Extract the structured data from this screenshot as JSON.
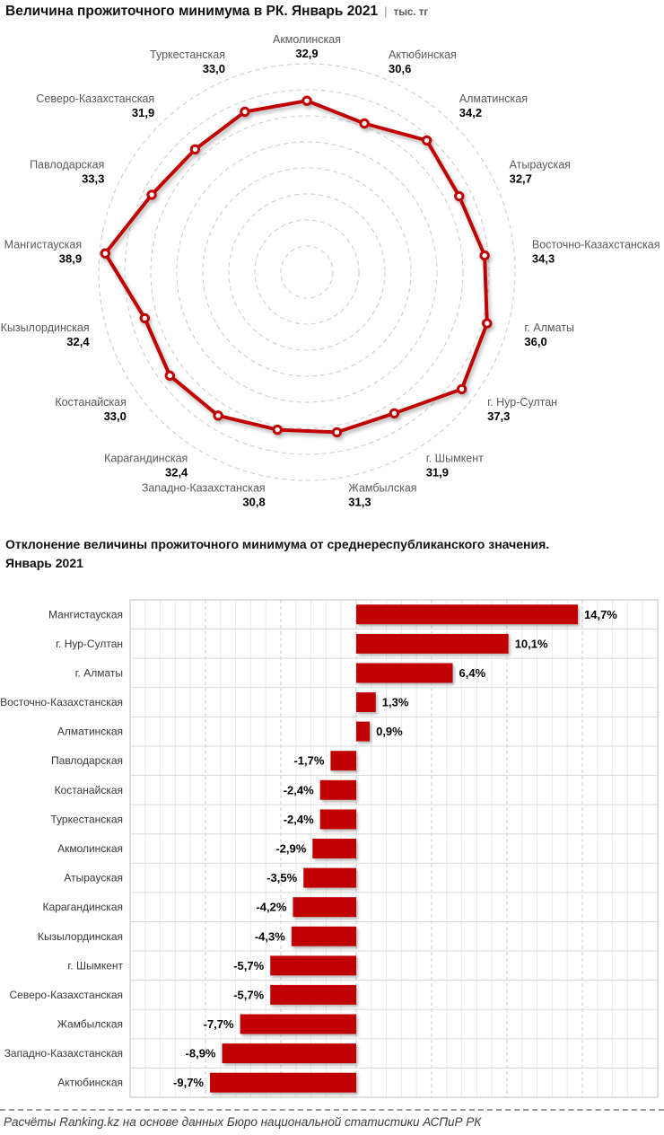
{
  "accent": "#C00000",
  "radar_section": {
    "title": "Величина прожиточного минимума в РК. Январь 2021",
    "separator": "|",
    "unit": "тыс. тг"
  },
  "bar_section": {
    "title_lines": [
      "Отклонение величины прожиточного минимума от среднереспубликанского значения.",
      "Январь 2021"
    ]
  },
  "footer": {
    "source": "Расчёты Ranking.kz на основе данных Бюро национальной статистики АСПиР РК"
  },
  "chart_data": [
    {
      "type": "radar",
      "title": "Величина прожиточного минимума в РК. Январь 2021",
      "unit": "тыс. тг",
      "categories": [
        "Акмолинская",
        "Актюбинская",
        "Алматинская",
        "Атырауская",
        "Восточно-Казахстанская",
        "г. Алматы",
        "г. Нур-Султан",
        "г. Шымкент",
        "Жамбылская",
        "Западно-Казахстанская",
        "Карагандинская",
        "Костанайская",
        "Кызылординская",
        "Мангистауская",
        "Павлодарская",
        "Северо-Казахстанская",
        "Туркестанская"
      ],
      "values": [
        32.9,
        30.6,
        34.2,
        32.7,
        34.3,
        36.0,
        37.3,
        31.9,
        31.3,
        30.8,
        32.4,
        33.0,
        32.4,
        38.9,
        33.3,
        31.9,
        33.0
      ],
      "value_labels": [
        "32,9",
        "30,6",
        "34,2",
        "32,7",
        "34,3",
        "36,0",
        "37,3",
        "31,9",
        "31,3",
        "30,8",
        "32,4",
        "33,0",
        "32,4",
        "38,9",
        "33,3",
        "31,9",
        "33,0"
      ],
      "axis": {
        "min": 0,
        "max": 40,
        "ring_step": 5,
        "grid": "dashed-circles",
        "spokes": false
      },
      "series_color": "#C00000",
      "marker": "white-center-dot",
      "legend": "none"
    },
    {
      "type": "bar",
      "orientation": "horizontal",
      "title": "Отклонение величины прожиточного минимума от среднереспубликанского значения. Январь 2021",
      "categories": [
        "Мангистауская",
        "г. Нур-Султан",
        "г. Алматы",
        "Восточно-Казахстанская",
        "Алматинская",
        "Павлодарская",
        "Костанайская",
        "Туркестанская",
        "Акмолинская",
        "Атырауская",
        "Карагандинская",
        "Кызылординская",
        "г. Шымкент",
        "Северо-Казахстанская",
        "Жамбылская",
        "Западно-Казахстанская",
        "Актюбинская"
      ],
      "values": [
        14.7,
        10.1,
        6.4,
        1.3,
        0.9,
        -1.7,
        -2.4,
        -2.4,
        -2.9,
        -3.5,
        -4.2,
        -4.3,
        -5.7,
        -5.7,
        -7.7,
        -8.9,
        -9.7
      ],
      "value_labels": [
        "14,7%",
        "10,1%",
        "6,4%",
        "1,3%",
        "0,9%",
        "-1,7%",
        "-2,4%",
        "-2,4%",
        "-2,9%",
        "-3,5%",
        "-4,2%",
        "-4,3%",
        "-5,7%",
        "-5,7%",
        "-7,7%",
        "-8,9%",
        "-9,7%"
      ],
      "xlim": [
        -15,
        20
      ],
      "minor_step": 1,
      "major_step": 5,
      "grid": "vertical minor solid + major dashed, row separators",
      "bar_color": "#C00000",
      "legend": "none"
    }
  ]
}
